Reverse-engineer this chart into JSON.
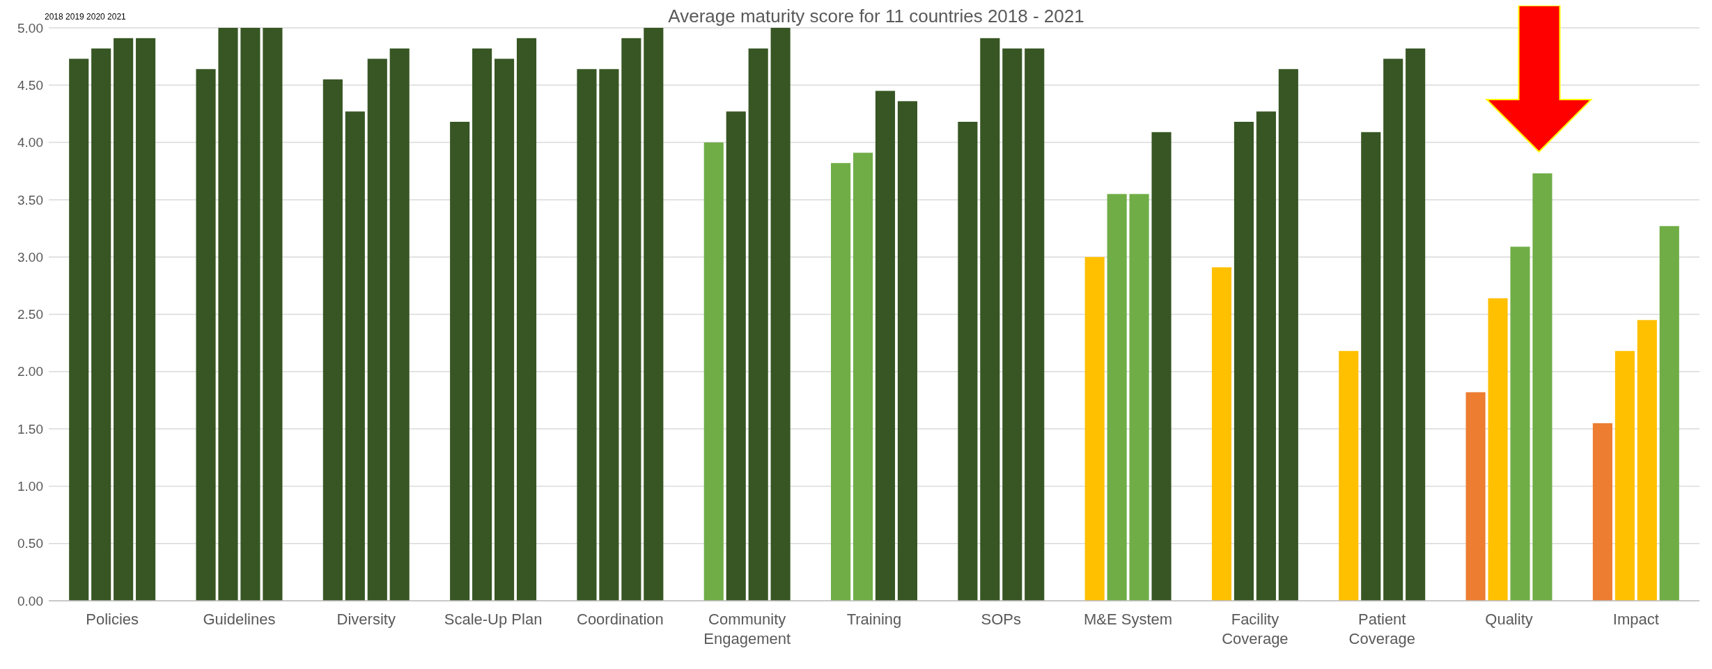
{
  "chart_data": {
    "type": "bar",
    "title": "Average maturity score for 11 countries 2018 - 2021",
    "categories": [
      "Policies",
      "Guidelines",
      "Diversity",
      "Scale-Up Plan",
      "Coordination",
      "Community Engagement",
      "Training",
      "SOPs",
      "M&E System",
      "Facility Coverage",
      "Patient Coverage",
      "Quality",
      "Impact"
    ],
    "series": [
      {
        "values": [
          4.73,
          4.64,
          4.55,
          4.18,
          4.64,
          4.0,
          3.82,
          4.18,
          3.0,
          2.91,
          2.18,
          1.82,
          1.55
        ],
        "colors": [
          "#375623",
          "#375623",
          "#375623",
          "#375623",
          "#375623",
          "#70ad47",
          "#70ad47",
          "#375623",
          "#ffc000",
          "#ffc000",
          "#ffc000",
          "#ed7d31",
          "#ed7d31"
        ]
      },
      {
        "values": [
          4.82,
          5.0,
          4.27,
          4.82,
          4.64,
          4.27,
          3.91,
          4.91,
          3.55,
          4.18,
          4.09,
          2.64,
          2.18
        ],
        "colors": [
          "#375623",
          "#375623",
          "#375623",
          "#375623",
          "#375623",
          "#375623",
          "#70ad47",
          "#375623",
          "#70ad47",
          "#375623",
          "#375623",
          "#ffc000",
          "#ffc000"
        ]
      },
      {
        "values": [
          4.91,
          5.0,
          4.73,
          4.73,
          4.91,
          4.82,
          4.45,
          4.82,
          3.55,
          4.27,
          4.73,
          3.09,
          2.45
        ],
        "colors": [
          "#375623",
          "#375623",
          "#375623",
          "#375623",
          "#375623",
          "#375623",
          "#375623",
          "#375623",
          "#70ad47",
          "#375623",
          "#375623",
          "#70ad47",
          "#ffc000"
        ]
      },
      {
        "values": [
          4.91,
          5.0,
          4.82,
          4.91,
          5.0,
          5.0,
          4.36,
          4.82,
          4.09,
          4.64,
          4.82,
          3.73,
          3.27
        ],
        "colors": [
          "#375623",
          "#375623",
          "#375623",
          "#375623",
          "#375623",
          "#375623",
          "#375623",
          "#375623",
          "#375623",
          "#375623",
          "#375623",
          "#70ad47",
          "#70ad47"
        ]
      }
    ],
    "ylim": [
      0,
      5
    ],
    "yticks": [
      {
        "value": 0,
        "label": "0.00"
      },
      {
        "value": 0.5,
        "label": "0.50"
      },
      {
        "value": 1,
        "label": "1.00"
      },
      {
        "value": 1.5,
        "label": "1.50"
      },
      {
        "value": 2,
        "label": "2.00"
      },
      {
        "value": 2.5,
        "label": "2.50"
      },
      {
        "value": 3,
        "label": "3.00"
      },
      {
        "value": 3.5,
        "label": "3.50"
      },
      {
        "value": 4,
        "label": "4.00"
      },
      {
        "value": 4.5,
        "label": "4.50"
      },
      {
        "value": 5,
        "label": "5.00"
      }
    ],
    "grid": "y",
    "annotations": [
      "2018 2019 2020 2021"
    ]
  }
}
